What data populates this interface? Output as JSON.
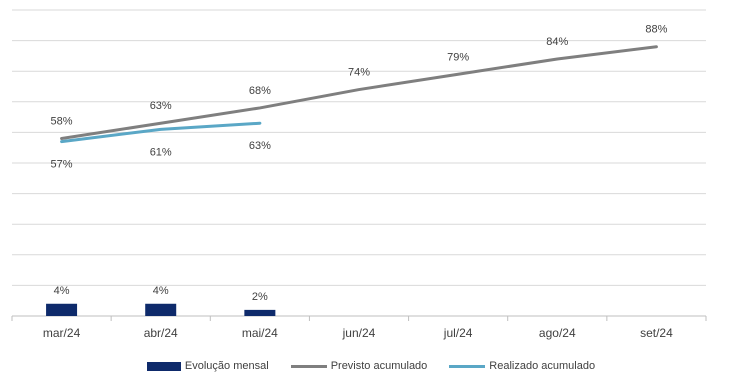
{
  "chart_data": {
    "type": "bar+line",
    "title": "",
    "xlabel": "",
    "ylabel": "",
    "categories": [
      "mar/24",
      "abr/24",
      "mai/24",
      "jun/24",
      "jul/24",
      "ago/24",
      "set/24"
    ],
    "ylim": [
      0,
      100
    ],
    "grid": true,
    "legend_position": "bottom",
    "series": [
      {
        "name": "Evolução mensal",
        "kind": "bar",
        "color": "#0e2a6b",
        "values": [
          4,
          4,
          2,
          null,
          null,
          null,
          null
        ],
        "labels": [
          "4%",
          "4%",
          "2%",
          "",
          "",
          "",
          ""
        ]
      },
      {
        "name": "Previsto acumulado",
        "kind": "line",
        "color": "#7f7f7f",
        "values": [
          58,
          63,
          68,
          74,
          79,
          84,
          88
        ],
        "labels": [
          "58%",
          "63%",
          "68%",
          "74%",
          "79%",
          "84%",
          "88%"
        ]
      },
      {
        "name": "Realizado acumulado",
        "kind": "line",
        "color": "#5aa7c6",
        "values": [
          57,
          61,
          63,
          null,
          null,
          null,
          null
        ],
        "labels": [
          "57%",
          "61%",
          "63%",
          "",
          "",
          "",
          ""
        ]
      }
    ]
  }
}
